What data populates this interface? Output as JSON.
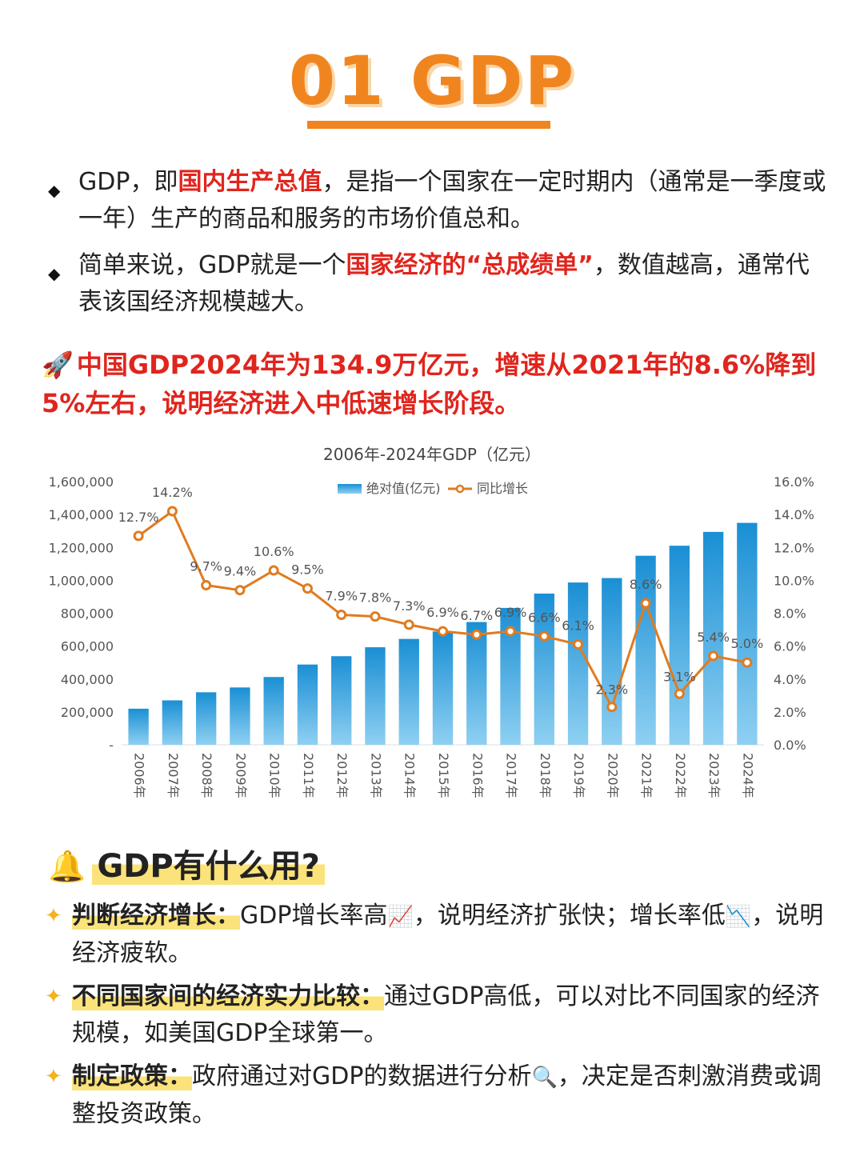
{
  "header": {
    "title": "01 GDP"
  },
  "intro": [
    {
      "pre": "GDP，即",
      "red": "国内生产总值",
      "post": "，是指一个国家在一定时期内（通常是一季度或一年）生产的商品和服务的市场价值总和。"
    },
    {
      "pre": "简单来说，GDP就是一个",
      "red": "国家经济的“总成绩单”",
      "post": "，数值越高，通常代表该国经济规模越大。"
    }
  ],
  "highlight": {
    "icon": "rocket-icon",
    "icon_char": "🚀",
    "text": "中国GDP2024年为134.9万亿元，增速从2021年的8.6%降到5%左右，说明经济进入中低速增长阶段。"
  },
  "chart_data": {
    "type": "bar",
    "title": "2006年-2024年GDP（亿元）",
    "categories": [
      "2006年",
      "2007年",
      "2008年",
      "2009年",
      "2010年",
      "2011年",
      "2012年",
      "2013年",
      "2014年",
      "2015年",
      "2016年",
      "2017年",
      "2018年",
      "2019年",
      "2020年",
      "2021年",
      "2022年",
      "2023年",
      "2024年"
    ],
    "series": [
      {
        "name": "绝对值(亿元)",
        "type": "bar",
        "axis": "left",
        "values": [
          219439,
          270092,
          319245,
          348518,
          412119,
          487940,
          538580,
          592963,
          643563,
          688858,
          746395,
          832036,
          919281,
          986515,
          1013567,
          1149237,
          1210207,
          1294272,
          1349084
        ]
      },
      {
        "name": "同比增长",
        "type": "line",
        "axis": "right",
        "values": [
          12.7,
          14.2,
          9.7,
          9.4,
          10.6,
          9.5,
          7.9,
          7.8,
          7.3,
          6.9,
          6.7,
          6.9,
          6.6,
          6.1,
          2.3,
          8.6,
          3.1,
          5.4,
          5.0
        ],
        "labels": [
          "12.7%",
          "14.2%",
          "9.7%",
          "9.4%",
          "10.6%",
          "9.5%",
          "7.9%",
          "7.8%",
          "7.3%",
          "6.9%",
          "6.7%",
          "6.9%",
          "6.6%",
          "6.1%",
          "2.3%",
          "8.6%",
          "3.1%",
          "5.4%",
          "5.0%"
        ]
      }
    ],
    "y_left": {
      "range": [
        0,
        1600000
      ],
      "ticks": [
        "-",
        "200,000",
        "400,000",
        "600,000",
        "800,000",
        "1,000,000",
        "1,200,000",
        "1,400,000",
        "1,600,000"
      ]
    },
    "y_right": {
      "range": [
        0,
        16
      ],
      "ticks": [
        "0.0%",
        "2.0%",
        "4.0%",
        "6.0%",
        "8.0%",
        "10.0%",
        "12.0%",
        "14.0%",
        "16.0%"
      ]
    },
    "legend": "top-center",
    "grid": false,
    "colors": {
      "bar_top": "#1a8fd4",
      "bar_bottom": "#8fd0f2",
      "line": "#e07b1f",
      "text": "#555555"
    }
  },
  "uses_section": {
    "icon": "bell-icon",
    "icon_char": "🔔",
    "title": "GDP有什么用?",
    "items": [
      {
        "label": "判断经济增长：",
        "parts": [
          "GDP增长率高",
          "📈",
          "，说明经济扩张快；增长率低",
          "📉",
          "，说明经济疲软。"
        ]
      },
      {
        "label": "不同国家间的经济实力比较：",
        "parts": [
          "通过GDP高低，可以对比不同国家的经济规模，如美国GDP全球第一。"
        ]
      },
      {
        "label": "制定政策：",
        "parts": [
          "政府通过对GDP的数据进行分析",
          "🔍",
          "，决定是否刺激消费或调整投资政策。"
        ]
      }
    ]
  }
}
